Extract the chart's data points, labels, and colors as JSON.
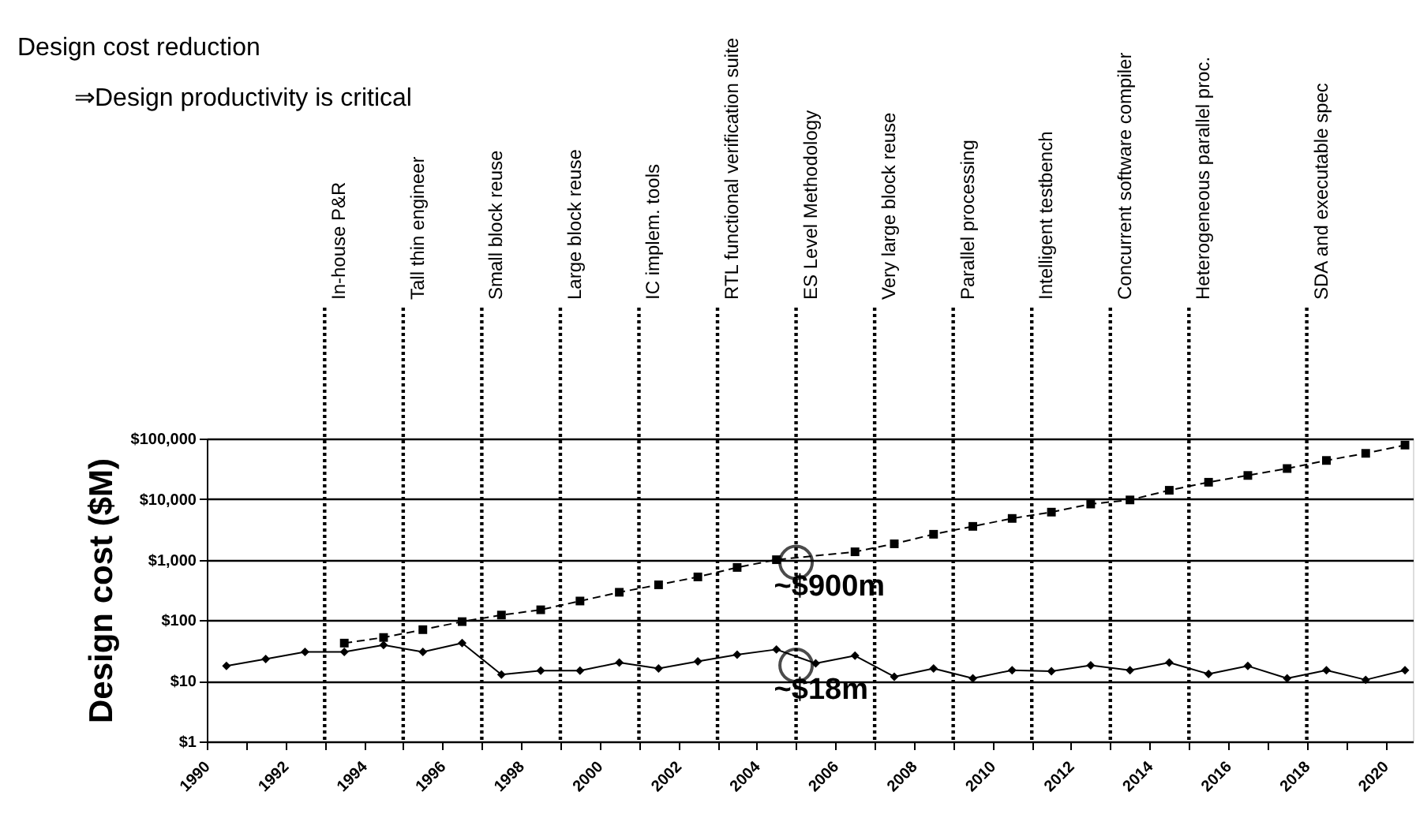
{
  "chart_data": {
    "type": "line",
    "title": "Design cost reduction",
    "subtitle": "⇒Design productivity is critical",
    "ylabel": "Design cost ($M)",
    "log": "y",
    "grid": "y",
    "xlim": [
      1990,
      2020.7
    ],
    "xticks": [
      1990,
      {
        "value": 1991,
        "label": null
      },
      1992,
      {
        "value": 1993,
        "label": null
      },
      1994,
      {
        "value": 1995,
        "label": null
      },
      1996,
      {
        "value": 1997,
        "label": null
      },
      1998,
      {
        "value": 1999,
        "label": null
      },
      2000,
      {
        "value": 2001,
        "label": null
      },
      2002,
      {
        "value": 2003,
        "label": null
      },
      2004,
      {
        "value": 2005,
        "label": null
      },
      2006,
      {
        "value": 2007,
        "label": null
      },
      2008,
      {
        "value": 2009,
        "label": null
      },
      2010,
      {
        "value": 2011,
        "label": null
      },
      2012,
      {
        "value": 2013,
        "label": null
      },
      2014,
      {
        "value": 2015,
        "label": null
      },
      2016,
      {
        "value": 2017,
        "label": null
      },
      2018,
      {
        "value": 2019,
        "label": null
      },
      2020
    ],
    "ylim": [
      1,
      100000
    ],
    "yticks": [
      {
        "value": 1,
        "label": "$1"
      },
      {
        "value": 10,
        "label": "$10"
      },
      {
        "value": 100,
        "label": "$100"
      },
      {
        "value": 1000,
        "label": "$1,000"
      },
      {
        "value": 10000,
        "label": "$10,000"
      },
      {
        "value": 100000,
        "label": "$100,000"
      }
    ],
    "series": [
      {
        "color": "#000000",
        "marker": "square",
        "line_style": "dashed",
        "x": [
          1993.5,
          1994.5,
          1995.5,
          1996.5,
          1997.5,
          1998.5,
          1999.5,
          2000.5,
          2001.5,
          2002.5,
          2003.5,
          2004.5,
          2006.5,
          2007.5,
          2008.5,
          2009.5,
          2010.5,
          2011.5,
          2012.5,
          2013.5,
          2014.5,
          2015.5,
          2016.5,
          2017.5,
          2018.5,
          2019.5,
          2020.5
        ],
        "values": [
          42,
          52,
          70,
          95,
          122,
          149,
          208,
          290,
          385,
          520,
          745,
          1000,
          1350,
          1830,
          2630,
          3550,
          4800,
          6100,
          8300,
          9700,
          14000,
          19000,
          24600,
          32000,
          43500,
          57000,
          78000
        ]
      },
      {
        "color": "#000000",
        "marker": "diamond",
        "line_style": "solid",
        "x": [
          1990.5,
          1991.5,
          1992.5,
          1993.5,
          1994.5,
          1995.5,
          1996.5,
          1997.5,
          1998.5,
          1999.5,
          2000.5,
          2001.5,
          2002.5,
          2003.5,
          2004.5,
          2005.5,
          2006.5,
          2007.5,
          2008.5,
          2009.5,
          2010.5,
          2011.5,
          2012.5,
          2013.5,
          2014.5,
          2015.5,
          2016.5,
          2017.5,
          2018.5,
          2019.5,
          2020.5
        ],
        "values": [
          17.6,
          23,
          30,
          30,
          39,
          30,
          42,
          12.7,
          14.7,
          14.7,
          20,
          16,
          21,
          27,
          33,
          19.4,
          26,
          11.7,
          16,
          11,
          15,
          14.4,
          18,
          15,
          20,
          13,
          17.6,
          11,
          15,
          10.4,
          15
        ]
      }
    ],
    "ref_lines": [
      {
        "axis": "x",
        "value": 1993,
        "label": "In-house P&R",
        "line_style": "dotted"
      },
      {
        "axis": "x",
        "value": 1995,
        "label": "Tall thin engineer",
        "line_style": "dotted"
      },
      {
        "axis": "x",
        "value": 1997,
        "label": "Small block reuse",
        "line_style": "dotted"
      },
      {
        "axis": "x",
        "value": 1999,
        "label": "Large block reuse",
        "line_style": "dotted"
      },
      {
        "axis": "x",
        "value": 2001,
        "label": "IC implem. tools",
        "line_style": "dotted"
      },
      {
        "axis": "x",
        "value": 2003,
        "label": "RTL functional verification suite",
        "line_style": "dotted"
      },
      {
        "axis": "x",
        "value": 2005,
        "label": "ES Level Methodology",
        "line_style": "dotted"
      },
      {
        "axis": "x",
        "value": 2007,
        "label": "Very large block reuse",
        "line_style": "dotted"
      },
      {
        "axis": "x",
        "value": 2009,
        "label": "Parallel processing",
        "line_style": "dotted"
      },
      {
        "axis": "x",
        "value": 2011,
        "label": "Intelligent testbench",
        "line_style": "dotted"
      },
      {
        "axis": "x",
        "value": 2013,
        "label": "Concurrent software compiler",
        "line_style": "dotted"
      },
      {
        "axis": "x",
        "value": 2015,
        "label": "Heterogeneous parallel proc.",
        "line_style": "dotted"
      },
      {
        "axis": "x",
        "value": 2018,
        "label": "SDA and executable spec",
        "line_style": "dotted"
      }
    ],
    "annotations": [
      {
        "text": "~$900m",
        "x": 2005,
        "y": 900
      },
      {
        "text": "~$18m",
        "x": 2005,
        "y": 18
      }
    ]
  }
}
